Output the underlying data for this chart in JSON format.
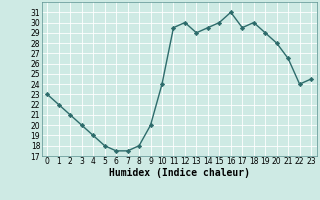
{
  "title": "",
  "xlabel": "Humidex (Indice chaleur)",
  "ylabel": "",
  "x": [
    0,
    1,
    2,
    3,
    4,
    5,
    6,
    7,
    8,
    9,
    10,
    11,
    12,
    13,
    14,
    15,
    16,
    17,
    18,
    19,
    20,
    21,
    22,
    23
  ],
  "y": [
    23,
    22,
    21,
    20,
    19,
    18,
    17.5,
    17.5,
    18,
    20,
    24,
    29.5,
    30,
    29,
    29.5,
    30,
    31,
    29.5,
    30,
    29,
    28,
    26.5,
    24,
    24.5
  ],
  "line_color": "#2d6b6b",
  "marker": "D",
  "marker_size": 2.2,
  "background_color": "#ceeae4",
  "grid_color": "#ffffff",
  "ylim": [
    17,
    32
  ],
  "xlim": [
    -0.5,
    23.5
  ],
  "yticks": [
    17,
    18,
    19,
    20,
    21,
    22,
    23,
    24,
    25,
    26,
    27,
    28,
    29,
    30,
    31
  ],
  "xticks": [
    0,
    1,
    2,
    3,
    4,
    5,
    6,
    7,
    8,
    9,
    10,
    11,
    12,
    13,
    14,
    15,
    16,
    17,
    18,
    19,
    20,
    21,
    22,
    23
  ],
  "tick_fontsize": 5.5,
  "xlabel_fontsize": 7,
  "line_width": 1.0
}
